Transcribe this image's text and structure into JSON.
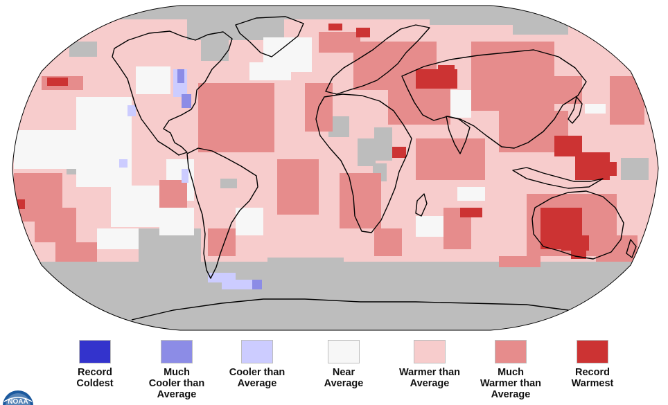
{
  "colors": {
    "record_coldest": "#3333cc",
    "much_cooler": "#8c8ce6",
    "cooler": "#ccccff",
    "near": "#f7f7f7",
    "warmer": "#f7cccc",
    "much_warmer": "#e68c8c",
    "record_warmest": "#cc3333",
    "no_data": "#bdbdbd",
    "coastline": "#000000"
  },
  "legend": {
    "items": [
      {
        "key": "record_coldest",
        "label": "Record\nColdest"
      },
      {
        "key": "much_cooler",
        "label": "Much\nCooler than\nAverage"
      },
      {
        "key": "cooler",
        "label": "Cooler than\nAverage"
      },
      {
        "key": "near",
        "label": "Near\nAverage"
      },
      {
        "key": "warmer",
        "label": "Warmer than\nAverage"
      },
      {
        "key": "much_warmer",
        "label": "Much\nWarmer than\nAverage"
      },
      {
        "key": "record_warmest",
        "label": "Record\nWarmest"
      }
    ]
  },
  "logo": {
    "text": "NOAA",
    "icon": "noaa-logo-icon"
  }
}
